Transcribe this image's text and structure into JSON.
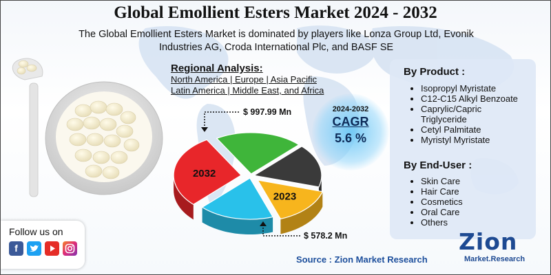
{
  "title": "Global Emollient Esters Market 2024 - 2032",
  "subtitle": "The Global Emollient Esters Market is dominated by players like Lonza Group Ltd, Evonik Industries AG, Croda International Plc, and BASF SE",
  "regional": {
    "heading": "Regional Analysis:",
    "line1": "North America | Europe | Asia Pacific",
    "line2": "Latin America | Middle East, and Africa"
  },
  "cagr": {
    "years": "2024-2032",
    "label": "CAGR",
    "value": "5.6 %"
  },
  "by_product": {
    "heading": "By Product :",
    "items": [
      "Isopropyl Myristate",
      "C12-C15 Alkyl Benzoate",
      "Caprylic/Capric Triglyceride",
      "Cetyl Palmitate",
      "Myristyl Myristate"
    ]
  },
  "by_end_user": {
    "heading": "By End-User :",
    "items": [
      "Skin Care",
      "Hair Care",
      "Cosmetics",
      "Oral Care",
      "Others"
    ]
  },
  "follow": {
    "label": "Follow us on",
    "icons": [
      "facebook-icon",
      "twitter-icon",
      "youtube-icon",
      "instagram-icon"
    ]
  },
  "source": "Source : Zion Market Research",
  "logo": {
    "main": "Zion",
    "sub": "Market.Research"
  },
  "colors": {
    "red": "#e8262a",
    "green": "#3fb53a",
    "dark": "#3a3a3a",
    "yellow": "#f7b51d",
    "cyan": "#29c1ea",
    "accent": "#0d2a57"
  },
  "chart_data": {
    "type": "pie",
    "title": "",
    "series": [
      {
        "name": "2032",
        "value": 997.99,
        "unit": "Mn",
        "label": "$ 997.99 Mn"
      },
      {
        "name": "2023",
        "value": 578.2,
        "unit": "Mn",
        "label": "$ 578.2 Mn"
      }
    ],
    "slices": [
      {
        "label": "2032",
        "color": "#e8262a",
        "share": 0.29
      },
      {
        "label": "",
        "color": "#3fb53a",
        "share": 0.21
      },
      {
        "label": "",
        "color": "#3a3a3a",
        "share": 0.17
      },
      {
        "label": "2023",
        "color": "#f7b51d",
        "share": 0.15
      },
      {
        "label": "",
        "color": "#29c1ea",
        "share": 0.18
      }
    ]
  }
}
